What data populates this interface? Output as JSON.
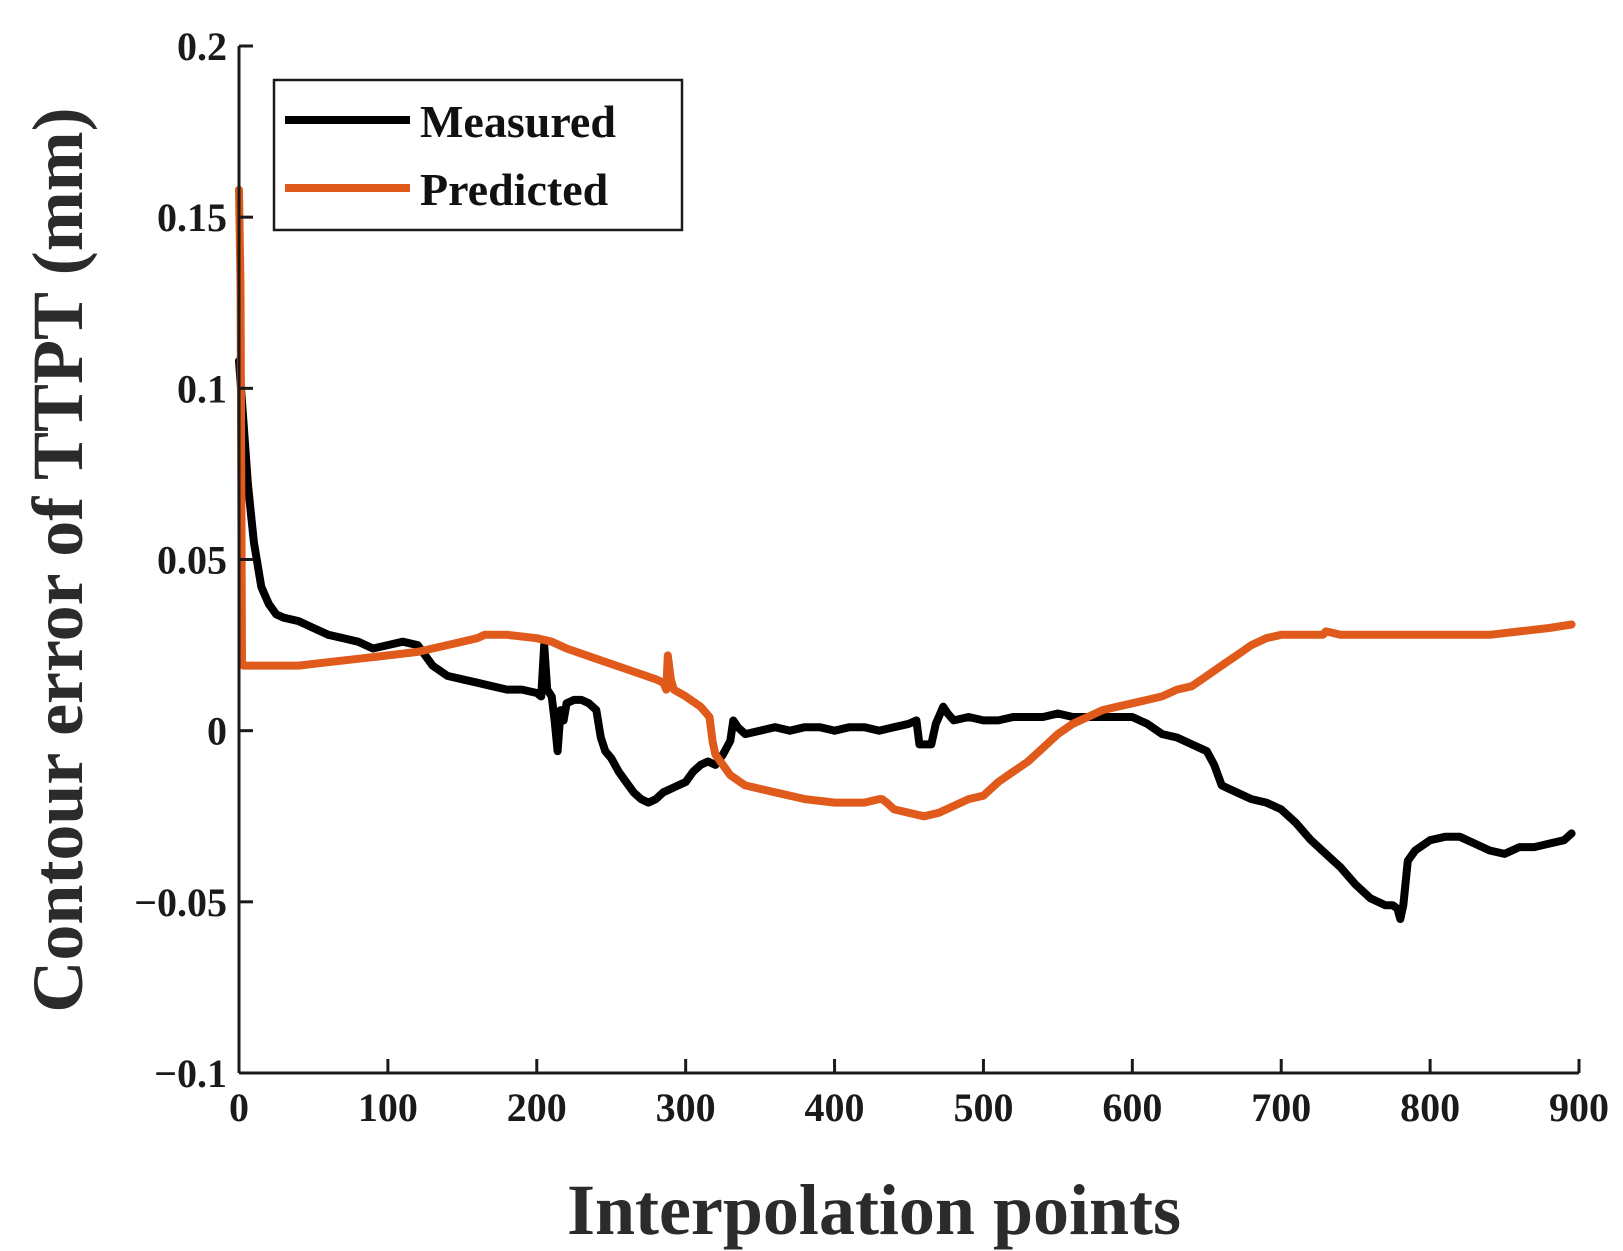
{
  "chart_data": {
    "type": "line",
    "title": "",
    "xlabel": "Interpolation points",
    "ylabel": "Contour error of TTPT (mm)",
    "xlim": [
      0,
      900
    ],
    "ylim": [
      -0.1,
      0.2
    ],
    "xticks": [
      0,
      100,
      200,
      300,
      400,
      500,
      600,
      700,
      800,
      900
    ],
    "xtick_labels": [
      "0",
      "100",
      "200",
      "300",
      "400",
      "500",
      "600",
      "700",
      "800",
      "900"
    ],
    "yticks": [
      -0.1,
      -0.05,
      0,
      0.05,
      0.1,
      0.15,
      0.2
    ],
    "ytick_labels": [
      "−0.1",
      "−0.05",
      "0",
      "0.05",
      "0.1",
      "0.15",
      "0.2"
    ],
    "grid": false,
    "legend_position": "top-left",
    "series": [
      {
        "name": "Measured",
        "color": "#000000",
        "x": [
          0,
          3,
          6,
          10,
          15,
          20,
          25,
          30,
          40,
          50,
          60,
          70,
          80,
          90,
          100,
          110,
          120,
          130,
          140,
          150,
          160,
          170,
          180,
          190,
          200,
          203,
          205,
          207,
          210,
          212,
          214,
          216,
          218,
          220,
          225,
          230,
          235,
          240,
          243,
          246,
          250,
          255,
          260,
          265,
          270,
          275,
          280,
          285,
          290,
          295,
          300,
          305,
          310,
          315,
          320,
          325,
          330,
          332,
          335,
          340,
          350,
          360,
          370,
          380,
          390,
          400,
          410,
          420,
          430,
          440,
          450,
          455,
          457,
          460,
          465,
          468,
          470,
          473,
          476,
          480,
          490,
          500,
          510,
          520,
          530,
          540,
          550,
          560,
          570,
          580,
          590,
          600,
          610,
          620,
          630,
          640,
          650,
          655,
          660,
          665,
          670,
          680,
          690,
          700,
          710,
          720,
          730,
          740,
          750,
          760,
          770,
          775,
          778,
          780,
          782,
          785,
          790,
          800,
          810,
          820,
          830,
          840,
          850,
          860,
          870,
          880,
          890,
          895
        ],
        "y": [
          0.108,
          0.09,
          0.072,
          0.055,
          0.042,
          0.037,
          0.034,
          0.033,
          0.032,
          0.03,
          0.028,
          0.027,
          0.026,
          0.024,
          0.025,
          0.026,
          0.025,
          0.019,
          0.016,
          0.015,
          0.014,
          0.013,
          0.012,
          0.012,
          0.011,
          0.01,
          0.025,
          0.012,
          0.01,
          0.003,
          -0.006,
          0.006,
          0.003,
          0.008,
          0.009,
          0.009,
          0.008,
          0.006,
          -0.002,
          -0.006,
          -0.008,
          -0.012,
          -0.015,
          -0.018,
          -0.02,
          -0.021,
          -0.02,
          -0.018,
          -0.017,
          -0.016,
          -0.015,
          -0.012,
          -0.01,
          -0.009,
          -0.01,
          -0.007,
          -0.003,
          0.003,
          0.001,
          -0.001,
          0.0,
          0.001,
          0.0,
          0.001,
          0.001,
          0.0,
          0.001,
          0.001,
          0.0,
          0.001,
          0.002,
          0.003,
          -0.004,
          -0.004,
          -0.004,
          0.002,
          0.004,
          0.007,
          0.005,
          0.003,
          0.004,
          0.003,
          0.003,
          0.004,
          0.004,
          0.004,
          0.005,
          0.004,
          0.004,
          0.004,
          0.004,
          0.004,
          0.002,
          -0.001,
          -0.002,
          -0.004,
          -0.006,
          -0.01,
          -0.016,
          -0.017,
          -0.018,
          -0.02,
          -0.021,
          -0.023,
          -0.027,
          -0.032,
          -0.036,
          -0.04,
          -0.045,
          -0.049,
          -0.051,
          -0.051,
          -0.052,
          -0.055,
          -0.051,
          -0.038,
          -0.035,
          -0.032,
          -0.031,
          -0.031,
          -0.033,
          -0.035,
          -0.036,
          -0.034,
          -0.034,
          -0.033,
          -0.032,
          -0.03
        ]
      },
      {
        "name": "Predicted",
        "color": "#e05a1b",
        "x": [
          0,
          1,
          2,
          3,
          5,
          10,
          20,
          40,
          60,
          80,
          100,
          120,
          140,
          160,
          165,
          180,
          200,
          210,
          220,
          240,
          260,
          280,
          285,
          287,
          288,
          290,
          292,
          300,
          310,
          316,
          318,
          320,
          325,
          330,
          340,
          350,
          360,
          370,
          380,
          400,
          420,
          430,
          432,
          435,
          440,
          450,
          460,
          470,
          480,
          490,
          500,
          510,
          520,
          530,
          540,
          550,
          560,
          570,
          580,
          590,
          600,
          610,
          620,
          630,
          640,
          650,
          660,
          670,
          680,
          690,
          700,
          720,
          728,
          730,
          740,
          760,
          780,
          800,
          820,
          840,
          860,
          880,
          895
        ],
        "y": [
          0.158,
          0.13,
          0.02,
          0.019,
          0.019,
          0.019,
          0.019,
          0.019,
          0.02,
          0.021,
          0.022,
          0.023,
          0.025,
          0.027,
          0.028,
          0.028,
          0.027,
          0.026,
          0.024,
          0.021,
          0.018,
          0.015,
          0.014,
          0.012,
          0.022,
          0.015,
          0.012,
          0.01,
          0.007,
          0.004,
          -0.003,
          -0.007,
          -0.01,
          -0.013,
          -0.016,
          -0.017,
          -0.018,
          -0.019,
          -0.02,
          -0.021,
          -0.021,
          -0.02,
          -0.02,
          -0.021,
          -0.023,
          -0.024,
          -0.025,
          -0.024,
          -0.022,
          -0.02,
          -0.019,
          -0.015,
          -0.012,
          -0.009,
          -0.005,
          -0.001,
          0.002,
          0.004,
          0.006,
          0.007,
          0.008,
          0.009,
          0.01,
          0.012,
          0.013,
          0.016,
          0.019,
          0.022,
          0.025,
          0.027,
          0.028,
          0.028,
          0.028,
          0.029,
          0.028,
          0.028,
          0.028,
          0.028,
          0.028,
          0.028,
          0.029,
          0.03,
          0.031
        ]
      }
    ]
  }
}
